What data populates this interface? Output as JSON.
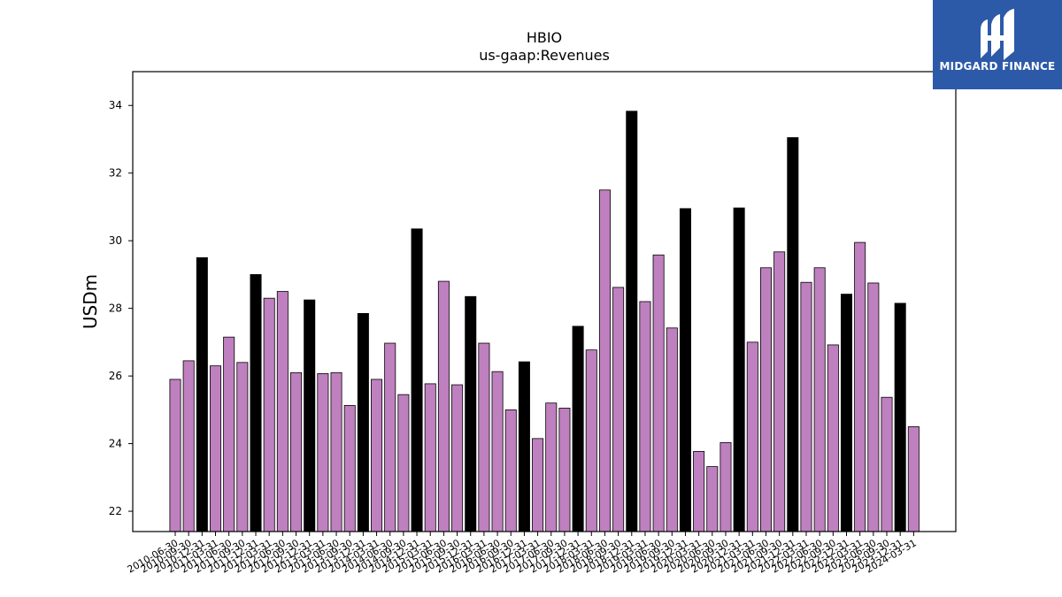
{
  "brand": {
    "name": "MIDGARD FINANCE",
    "color": "#2d5aa8"
  },
  "chart_data": {
    "type": "bar",
    "title": "HBIO",
    "subtitle": "us-gaap:Revenues",
    "ylabel": "USDm",
    "xlabel": "",
    "ylim": [
      21.4,
      35.0
    ],
    "yticks": [
      22,
      24,
      26,
      28,
      30,
      32,
      34
    ],
    "colors": {
      "quarterly": "#bf80bf",
      "annual": "#000000",
      "edge": "#000000"
    },
    "categories": [
      "2010-06-30",
      "2010-09-30",
      "2010-12-31",
      "2011-03-31",
      "2011-06-30",
      "2011-09-30",
      "2011-12-31",
      "2012-03-31",
      "2012-06-30",
      "2012-09-30",
      "2012-12-31",
      "2013-03-31",
      "2013-06-30",
      "2013-09-30",
      "2013-12-31",
      "2014-03-31",
      "2014-06-30",
      "2014-09-30",
      "2014-12-31",
      "2015-03-31",
      "2015-06-30",
      "2015-09-30",
      "2015-12-31",
      "2016-03-31",
      "2016-06-30",
      "2016-09-30",
      "2016-12-31",
      "2017-03-31",
      "2017-06-30",
      "2017-09-30",
      "2017-12-31",
      "2018-03-31",
      "2018-06-30",
      "2018-09-30",
      "2018-12-31",
      "2019-03-31",
      "2019-06-30",
      "2019-09-30",
      "2019-12-31",
      "2020-03-31",
      "2020-06-30",
      "2020-09-30",
      "2020-12-31",
      "2021-03-31",
      "2021-06-30",
      "2021-09-30",
      "2021-12-31",
      "2022-03-31",
      "2022-06-30",
      "2022-09-30",
      "2022-12-31",
      "2023-03-31",
      "2023-06-30",
      "2023-09-30",
      "2023-12-31",
      "2024-03-31"
    ],
    "values": [
      25.9,
      26.45,
      29.5,
      26.3,
      27.15,
      26.4,
      29.0,
      28.3,
      28.5,
      26.1,
      28.25,
      26.07,
      26.1,
      25.13,
      27.85,
      25.9,
      26.97,
      25.45,
      30.35,
      25.77,
      28.8,
      25.74,
      28.35,
      26.97,
      26.13,
      25.0,
      26.42,
      24.15,
      25.2,
      25.05,
      27.47,
      26.77,
      31.5,
      28.62,
      33.83,
      28.2,
      29.58,
      27.42,
      30.95,
      23.77,
      23.32,
      24.03,
      30.97,
      27.0,
      29.2,
      29.67,
      33.05,
      28.77,
      29.2,
      26.92,
      28.42,
      29.95,
      28.75,
      25.37,
      28.15,
      24.5
    ],
    "annual": [
      false,
      false,
      true,
      false,
      false,
      false,
      true,
      false,
      false,
      false,
      true,
      false,
      false,
      false,
      true,
      false,
      false,
      false,
      true,
      false,
      false,
      false,
      true,
      false,
      false,
      false,
      true,
      false,
      false,
      false,
      true,
      false,
      false,
      false,
      true,
      false,
      false,
      false,
      true,
      false,
      false,
      false,
      true,
      false,
      false,
      false,
      true,
      false,
      false,
      false,
      true,
      false,
      false,
      false,
      true,
      false
    ]
  }
}
